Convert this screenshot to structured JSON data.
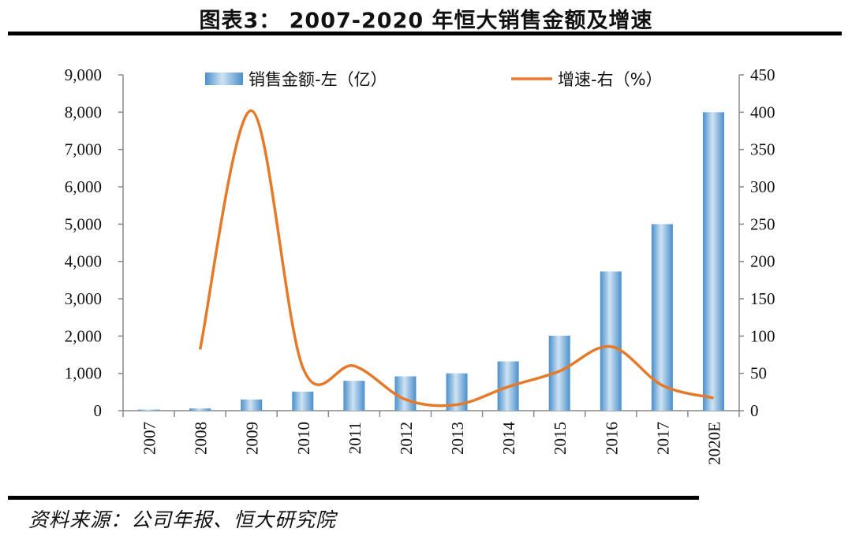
{
  "header": {
    "title": "图表3： 2007-2020 年恒大销售金额及增速"
  },
  "footer": {
    "source": "资料来源：公司年报、恒大研究院"
  },
  "chart_data": {
    "type": "bar+line",
    "title": "图表3： 2007-2020 年恒大销售金额及增速",
    "categories": [
      "2007",
      "2008",
      "2009",
      "2010",
      "2011",
      "2012",
      "2013",
      "2014",
      "2015",
      "2016",
      "2017",
      "2020E"
    ],
    "series": [
      {
        "name": "销售金额-左（亿）",
        "type": "bar",
        "axis": "left",
        "values": [
          30,
          60,
          300,
          510,
          800,
          920,
          1000,
          1320,
          2010,
          3730,
          5000,
          8000
        ]
      },
      {
        "name": "增速-右（%）",
        "type": "line",
        "axis": "right",
        "values": [
          null,
          82,
          402,
          58,
          60,
          15,
          8,
          32,
          53,
          86,
          34,
          17
        ]
      }
    ],
    "y_left": {
      "ylim": [
        0,
        9000
      ],
      "ticks": [
        0,
        1000,
        2000,
        3000,
        4000,
        5000,
        6000,
        7000,
        8000,
        9000
      ],
      "tick_labels": [
        "0",
        "1,000",
        "2,000",
        "3,000",
        "4,000",
        "5,000",
        "6,000",
        "7,000",
        "8,000",
        "9,000"
      ]
    },
    "y_right": {
      "ylim": [
        0,
        450
      ],
      "ticks": [
        0,
        50,
        100,
        150,
        200,
        250,
        300,
        350,
        400,
        450
      ],
      "tick_labels": [
        "0",
        "50",
        "100",
        "150",
        "200",
        "250",
        "300",
        "350",
        "400",
        "450"
      ]
    },
    "legend_position": "top",
    "grid": false,
    "colors": {
      "bar_light": "#cfe3f3",
      "bar_dark": "#4a8fcb",
      "line": "#e47a2a",
      "axis": "#888888"
    }
  }
}
